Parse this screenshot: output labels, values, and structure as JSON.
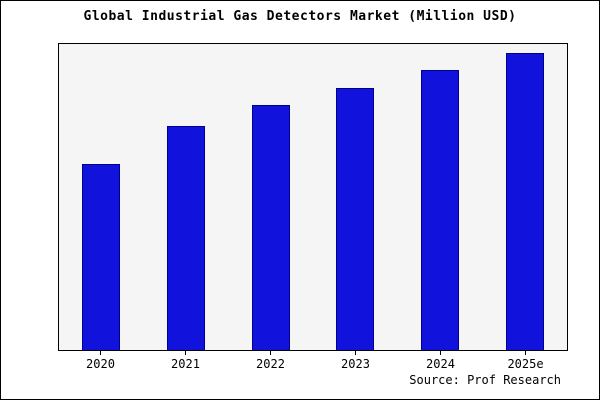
{
  "title": "Global Industrial Gas Detectors Market (Million USD)",
  "source": "Source: Prof Research",
  "colors": {
    "bar_fill": "#1212dd",
    "bar_edge": "#00008b",
    "plot_bg": "#f5f5f5",
    "frame": "#000000"
  },
  "chart_data": {
    "type": "bar",
    "title": "Global Industrial Gas Detectors Market (Million USD)",
    "categories": [
      "2020",
      "2021",
      "2022",
      "2023",
      "2024",
      "2025e"
    ],
    "values": [
      64,
      77,
      84,
      90,
      96,
      102
    ],
    "values_note": "No y-axis tick labels are shown in the chart; values are relative estimates read from bar heights",
    "xlabel": "",
    "ylabel": "",
    "ylim": [
      0,
      105
    ],
    "grid": false,
    "legend": false,
    "annotation": "Source: Prof Research"
  }
}
